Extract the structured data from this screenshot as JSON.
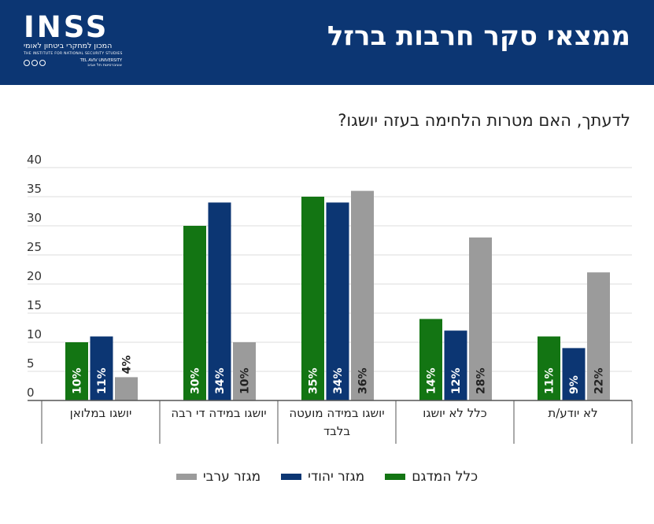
{
  "header": {
    "title": "ממצאי סקר חרבות ברזל",
    "logo": {
      "mark": "INSS",
      "hebrew": "המכון למחקרי ביטחון לאומי",
      "english": "THE INSTITUTE FOR NATIONAL SECURITY STUDIES",
      "university_heb": "אוניברסיטת תל אביב",
      "university_en": "TEL AVIV UNIVERSITY"
    }
  },
  "chart_data": {
    "type": "bar",
    "title": "לדעתך, האם מטרות הלחימה בעזה יושגו?",
    "categories": [
      "יושגו במלואן",
      "יושגו במידה די רבה",
      "יושגו במידה מועטה בלבד",
      "כלל לא יושגו",
      "לא יודע/ת"
    ],
    "series": [
      {
        "name": "כלל המדגם",
        "values": [
          10,
          30,
          35,
          14,
          11
        ],
        "labels": [
          "10%",
          "30%",
          "35%",
          "14%",
          "11%"
        ],
        "color": "#137513"
      },
      {
        "name": "מגזר יהודי",
        "values": [
          11,
          34,
          34,
          12,
          9
        ],
        "labels": [
          "11%",
          "34%",
          "34%",
          "12%",
          "9%"
        ],
        "color": "#0c3673"
      },
      {
        "name": "מגזר ערבי",
        "values": [
          4,
          10,
          36,
          28,
          22
        ],
        "labels": [
          "4%",
          "10%",
          "36%",
          "28%",
          "22%"
        ],
        "color": "#9b9b9b"
      }
    ],
    "y_ticks": [
      "0",
      "5",
      "10",
      "15",
      "20",
      "25",
      "30",
      "35",
      "40"
    ],
    "ylim": [
      0,
      40
    ],
    "grid": true,
    "legend_position": "bottom"
  }
}
